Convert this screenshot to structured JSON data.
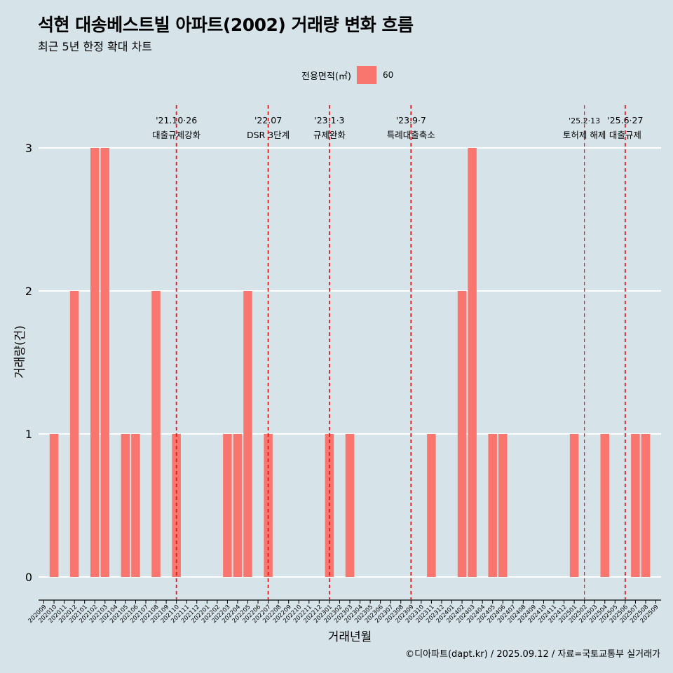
{
  "title": "석현 대송베스트빌 아파트(2002) 거래량 변화 흐름",
  "subtitle": "최근 5년 한정 확대 차트",
  "legend": {
    "title": "전용면적(㎡)",
    "label": "60",
    "color": "#f8766d"
  },
  "caption": "©디아파트(dapt.kr) / 2025.09.12 / 자료=국토교통부 실거래가",
  "chart_data": {
    "type": "bar",
    "xlabel": "거래년월",
    "ylabel": "거래량(건)",
    "ylim": [
      0,
      3
    ],
    "yticks": [
      0,
      1,
      2,
      3
    ],
    "bar_color": "#f8766d",
    "categories": [
      "202009",
      "202010",
      "202011",
      "202012",
      "202101",
      "202102",
      "202103",
      "202104",
      "202105",
      "202106",
      "202107",
      "202108",
      "202109",
      "202110",
      "202111",
      "202112",
      "202201",
      "202202",
      "202203",
      "202204",
      "202205",
      "202206",
      "202207",
      "202208",
      "202209",
      "202210",
      "202211",
      "202212",
      "202301",
      "202302",
      "202303",
      "202304",
      "202305",
      "202306",
      "202307",
      "202308",
      "202309",
      "202310",
      "202311",
      "202312",
      "202401",
      "202402",
      "202403",
      "202404",
      "202405",
      "202406",
      "202407",
      "202408",
      "202409",
      "202410",
      "202411",
      "202412",
      "202501",
      "202502",
      "202503",
      "202504",
      "202505",
      "202506",
      "202507",
      "202508",
      "202509"
    ],
    "series": [
      {
        "values": [
          0,
          1,
          0,
          2,
          0,
          3,
          3,
          0,
          1,
          1,
          0,
          2,
          0,
          1,
          0,
          0,
          0,
          0,
          1,
          1,
          2,
          0,
          1,
          0,
          0,
          0,
          0,
          0,
          1,
          0,
          1,
          0,
          0,
          0,
          0,
          0,
          0,
          0,
          1,
          0,
          0,
          2,
          3,
          0,
          1,
          1,
          0,
          0,
          0,
          0,
          0,
          0,
          1,
          0,
          0,
          1,
          0,
          0,
          1,
          1,
          0
        ]
      }
    ],
    "annotations": [
      {
        "date": "'21.10·26",
        "label": "대출규제강화",
        "month": "202110"
      },
      {
        "date": "'22.07",
        "label": "DSR 3단계",
        "month": "202207"
      },
      {
        "date": "'23.1·3",
        "label": "규제완화",
        "month": "202301"
      },
      {
        "date": "'23.9·7",
        "label": "특례대출축소",
        "month": "202309"
      },
      {
        "date": "'25.2·13",
        "label": "토허제 해제",
        "month": "202502"
      },
      {
        "date": "'25.6·27",
        "label": "대출규제",
        "month": "202506"
      }
    ]
  }
}
